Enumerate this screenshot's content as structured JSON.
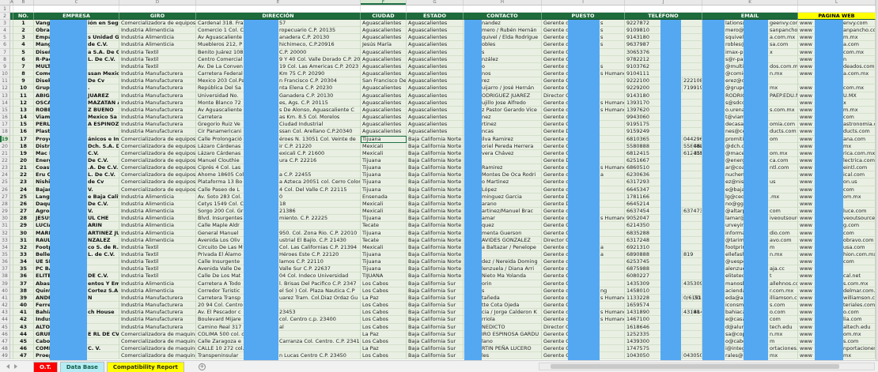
{
  "sheet": {
    "column_letters": [
      "A",
      "B",
      "C",
      "D",
      "E",
      "F",
      "G",
      "H",
      "I",
      "J",
      "K",
      "L"
    ],
    "headers": [
      "NO.",
      "EMPRESA",
      "GIRO",
      "DIRECCIÓN",
      "CIUDAD",
      "ESTADO",
      "CONTACTO",
      "PUESTO",
      "TELÉFONO",
      "EMAIL",
      "PAGINA WEB"
    ],
    "row_fields": [
      "no",
      "empresa_left",
      "empresa_right",
      "giro",
      "direccion_left",
      "direccion_right",
      "ciudad",
      "estado",
      "contacto",
      "puesto_left",
      "puesto_right",
      "tel1",
      "tel2",
      "tel3",
      "email_left",
      "email_right",
      "web_left",
      "web_right"
    ],
    "visible_row_numbers_start": 1,
    "visible_row_numbers_end": 49,
    "selection": {
      "sheet_row": 19,
      "column": "CIUDAD",
      "value": "Tijuana",
      "column_letter": "F"
    }
  },
  "rows": [
    [
      "1",
      "Vanguar",
      "ión en Seguridad E",
      "Comercializadora de equipos",
      "Cardenal 318. Fra",
      "57",
      "Aguascalientes",
      "Aguascalientes",
      "nandez",
      "Gerente de",
      "s",
      "9227872",
      "",
      "",
      "lations@",
      "geenvy.com",
      "www",
      "envy.com"
    ],
    [
      "2",
      "Obrador",
      "",
      "Industria Alimenticia",
      "Comercio 1 Col. C",
      "ropecuario C.P. 20135",
      "Aguascalientes",
      "Aguascalientes",
      "mero / Rubén Hernán",
      "Gerente de",
      "s",
      "9109810",
      "",
      "",
      "mero@o",
      "sanpancho.co",
      "www",
      "anpancho.com"
    ],
    [
      "3",
      "Empacad",
      "s Unidad Ganadera",
      "Industria Alimenticia",
      "Av Aguascaliente",
      "anadera C.P. 20130",
      "Aguascalientes",
      "Aguascalientes",
      "quivel / Elda Rodrígue",
      "Gerente de",
      "s",
      "9143180",
      "",
      "",
      "squivel@",
      "a.com.mx",
      "www",
      "m.mx"
    ],
    [
      "4",
      "Mangra",
      "de C.V.",
      "Industria Alimenticia",
      "Muebleros 212, P",
      "hichimeco, C.P.20916",
      "Jesús María",
      "Aguascalientes",
      "obles",
      "Gerente de",
      "s",
      "9637987",
      "",
      "",
      "robles@r",
      "sa.com",
      "www",
      "a.com"
    ],
    [
      "5",
      "Diseño Y",
      "a S.A. De C.V.",
      "Industria Textil",
      "Benito Juárez 108",
      "C.P. 20000",
      "Aguascalientes",
      "Aguascalientes",
      "s",
      "Gerente Co",
      "",
      "3065376",
      "",
      "",
      "imax-pro",
      "x",
      "www",
      "com.mx"
    ],
    [
      "6",
      "R-Pac M",
      "L. De C.V.",
      "Industria Textil",
      "Centro Comercial",
      "9 Y 40 Col. Valle Dorado C.P. 20",
      "Aguascalientes",
      "Aguascalientes",
      "nzález",
      "Gerente Co",
      "",
      "9782212",
      "",
      "",
      "s@r-pac.c",
      "",
      "www",
      "n"
    ],
    [
      "7",
      "MULTI B",
      "",
      "Industria Textil",
      "Av. De La Conven",
      "19 Col. Las Americas C.P. 2023",
      "Aguascalientes",
      "Aguascalientes",
      "o",
      "Gerente de",
      "s",
      "9103762",
      "",
      "",
      "@multibo",
      "dos.com.mx",
      "www",
      "deados.com.mx"
    ],
    [
      "8",
      "Comedor",
      "ssan Mexicana Ag",
      "Industria Manufacturera",
      "Carretera Federal",
      "Km 75 C.P. 20290",
      "Aguascalientes",
      "Aguascalientes",
      "nos",
      "Gerente de",
      "s Humanos",
      "9104111",
      "",
      "",
      "@comida",
      "n.mx",
      "www",
      "a.com.mx"
    ],
    [
      "9",
      "Diseko S",
      "De Cv",
      "Industria Manufacturera",
      "Mexico 203 Col.Pa",
      "n Francisco C.P. 20304",
      "San Francisco De Lo",
      "Aguascalientes",
      "rez",
      "Gerente Ge",
      "",
      "9222100",
      "222108",
      "",
      "erez@dk",
      "",
      "",
      ""
    ],
    [
      "10",
      "Grupo Ct",
      ".",
      "Industria Manufacturera",
      "República Del Sa",
      "nta Elena C.P. 20230",
      "Aguascalientes",
      "Aguascalientes",
      "uijarro / José Hernán",
      "Gerente Ge",
      "",
      "9229200",
      "719919",
      "",
      "@grupoct",
      "mx",
      "www",
      "com.mx"
    ],
    [
      "11",
      "ABIGAIL",
      "JUAREZ",
      "Industria Manufacturera",
      "Universidad No.",
      "Ganadera C.P. 20130",
      "Aguascalientes",
      "Aguascalientes",
      "ODRIGUEZ JUAREZ",
      "Director Ge",
      "",
      "9143180",
      "",
      "",
      "RODRIGU",
      "PAEP.EDU.MX",
      "www",
      "U.MX"
    ],
    [
      "12",
      "OSCAR A",
      "MAZATAN ACOSTA",
      "Industria Manufacturera",
      "Monte Blanco 72",
      "es, Ags. C.P. 20115",
      "Aguascalientes",
      "Aguascalientes",
      "ujillo Jose Alfredo",
      "Gerente de",
      "s Humanos",
      "1393170",
      "",
      "",
      "s@sdcom",
      "",
      "www",
      "x"
    ],
    [
      "13",
      "ROBERT",
      "Z BUENO",
      "Industria Manufacturera",
      "Av Aguascaliente",
      "s De Alonso, Aguascaliente C",
      "Aguascalientes",
      "Aguascalientes",
      "z Pastor Gerardo Vice",
      "Gerente de",
      "s Humanos",
      "1397620",
      "",
      "",
      "o.urena@",
      "s.com.mx",
      "www",
      "m.mx"
    ],
    [
      "14",
      "Viam Mé",
      "Mexico Sa De Cv",
      "Industria Manufacturera",
      "Carretera",
      "as Km. 8.5 Col. Morelos",
      "Aguascalientes",
      "Aguascalientes",
      "nez",
      "Gerente de",
      "",
      "9943060",
      "",
      "",
      "t@viamm",
      "",
      "www",
      "com"
    ],
    [
      "15",
      "PERLA JA",
      "A ESPINOZA",
      "Industria Manufacturera",
      "Gregorio Ruiz Ve",
      "Ciudad Industrial",
      "Aguascalientes",
      "Aguascalientes",
      "rtinez",
      "Gerente Ge",
      "",
      "9195175",
      "",
      "",
      "decasag",
      "omia.com",
      "www",
      "astronomia.com"
    ],
    [
      "16",
      "Plasticos",
      "",
      "Industria Manufacturera",
      "Cir Panamericani",
      "ssan Col. Arellano C.P.20340",
      "Aguascalientes",
      "Aguascalientes",
      "ncas",
      "Gerente De",
      "",
      "9159249",
      "",
      "",
      "nes@cel",
      "ducts.com",
      "www",
      "ducts.com"
    ],
    [
      "17",
      "Proyecto",
      "ánicos e Industrial",
      "Comercializadora de equipos",
      "Calle Prolongació",
      "éroes N. 13051 Col. Veinte de",
      "Tijuana",
      "Baja California Norte",
      "ilva Ramirez",
      "Gerente de",
      "",
      "6810365",
      "044296",
      "",
      "promitiju",
      "om",
      "www",
      "ana.com"
    ],
    [
      "18",
      "Distribui",
      "Dch. S.A. De C.V.",
      "Comercializadora de equipos",
      "Lázaro Cárdenas",
      "ir C.P. 21220",
      "Mexicali",
      "Baja California Norte",
      "oriel Pereda Herrera",
      "Gerente Ge",
      "",
      "5580888",
      "558088",
      "4624",
      "@dch.com",
      "",
      "www",
      "mx"
    ],
    [
      "19",
      "Mac Elé",
      "C.V.",
      "Comercializadora de equipos",
      "Lázaro Cárdenas",
      "exicali C.P. 21600",
      "Mexicali",
      "Baja California Norte",
      "vera Chávez",
      "Gerente Ge",
      "",
      "6812415",
      "612415",
      "3561",
      "@macele",
      "om.mx",
      "www",
      "rica.com.mx"
    ],
    [
      "20",
      "Energía",
      "De C.V.",
      "Comercializadora de equipos",
      "Manuel Clouthie",
      "ura C.P. 22216",
      "Tijuana",
      "Baja California Norte",
      "",
      "Gerente De",
      "",
      "6251667",
      "",
      "",
      "@energia",
      "ca.com",
      "www",
      "lectrica.com"
    ],
    [
      "21",
      "Coastline",
      ".A. De C.V.",
      "Comercializadora de equipos",
      "Ciprés 4 Col. Las",
      "",
      "Tijuana",
      "Baja California Norte",
      "Ramirez",
      "Gerente de",
      "s Humanos",
      "6860510",
      "",
      "",
      "ar@coas",
      "ntl.com",
      "www",
      "eintl.com"
    ],
    [
      "22",
      "Eru Chen",
      "L. De C.V.",
      "Comercializadora de equipos",
      "Ahome 18605 Col",
      "a C.P. 22455",
      "Tijuana",
      "Baja California Norte",
      "Montes De Oca Rodri",
      "Gerente de",
      "a",
      "6230636",
      "",
      "",
      "nuchemic",
      "",
      "www",
      "ical.com"
    ],
    [
      "23",
      "Nishiniho",
      "de Cv",
      "Comercializadora de equipos",
      "Plataforma 13 Bo",
      "a Azteca 20051 col. Cerro Color",
      "Tijuana",
      "Baja California Norte",
      "o Martinez",
      "Gerente de",
      "",
      "6317293",
      "",
      "",
      "ez@nishi",
      "us",
      "www",
      "on.us"
    ],
    [
      "24",
      "Bajamet",
      "V.",
      "Comercializadora de equipos",
      "Calle Paseo de L",
      "4 Col. Del Valle C.P. 22115",
      "Tijuana",
      "Baja California Norte",
      "López",
      "Gerente de",
      "",
      "6645347",
      "",
      "",
      "e@baja-r",
      "",
      "www",
      "com"
    ],
    [
      "25",
      "Langoste",
      "e Baja California",
      "Industria Alimenticia",
      "Av. Soto 283 Col.",
      "0",
      "Ensenada",
      "Baja California Norte",
      "minguez Garcia",
      "Gerente De",
      "",
      "1781166",
      "",
      "",
      "lg@cedm",
      ".mx",
      "www",
      "om.mx"
    ],
    [
      "26",
      "Daqu De",
      "De C.V.",
      "Industria Alimenticia",
      "Cetys 1549 Col. C",
      "18",
      "Mexicali",
      "Baja California Norte",
      "arano",
      "Gerente De",
      "",
      "6645214",
      "",
      "",
      "no@ggef",
      "",
      "www",
      ""
    ],
    [
      "27",
      "Agroalim",
      "V.",
      "Industria Alimenticia",
      "Sorgo 200 Col. Gr",
      "21386",
      "Mexicali",
      "Baja California Norte",
      "artinez/Manuel Brac",
      "Gerente de",
      "",
      "6637454",
      "637473",
      "",
      "@altarpr",
      "com",
      "www",
      "luce.com"
    ],
    [
      "28",
      "JESUS EN",
      "UL CHE",
      "Industria Alimenticia",
      "Blvd. Insurgentes",
      "miento. C.P. 22225",
      "Tijuana",
      "Baja California Norte",
      "amar",
      "Gerente de",
      "s Humanos",
      "9052047",
      "",
      "",
      "lamar@p",
      "iveoutsource.c",
      "www",
      "veoutsource.com"
    ],
    [
      "29",
      "LUCIA YF",
      "ARIN",
      "Industria Alimenticia",
      "Calle Maple Aldr",
      "",
      "Tecate",
      "Baja California Norte",
      "quez",
      "Gerente Ge",
      "",
      "6214350",
      "",
      "",
      "urveying",
      "",
      "www",
      "g.com"
    ],
    [
      "30",
      "MARIA D",
      "ARTINEZ JUAREZ",
      "Industria Alimenticia",
      "General Manuel",
      "950. Col. Zona Rio. C.P. 22010",
      "Tijuana",
      "Baja California Norte",
      "menta Guerson",
      "Gerente Ge",
      "",
      "6835288",
      "",
      "",
      "informa",
      "dio.com",
      "www",
      "com"
    ],
    [
      "31",
      "RAUL BE",
      "NZALEZ",
      "Industria Alimenticia",
      "Avenida Los Oliv",
      "ustrial El Bajío. C.P. 21430",
      "Tecate",
      "Baja California Norte",
      "AVIDES GONZALEZ",
      "Director Ge",
      "",
      "6317248",
      "",
      "",
      "@tarima",
      "avo.com",
      "www",
      "obravo.com"
    ],
    [
      "32",
      "Footprin",
      "co S. de R.L. de C.V",
      "Industria Textil",
      "Circuito De Las M",
      "Col. Las Californias C.P. 21394",
      "Mexicali",
      "Baja California Norte",
      "a Baltazar / Penelope",
      "Gerente de",
      "a",
      "6921310",
      "",
      "",
      "footprint",
      "m",
      "www",
      "usa.com"
    ],
    [
      "33",
      "Belle Fas",
      "L. de C.V.",
      "Industria Textil",
      "Privada El Álamo",
      "Héroes Este C.P. 22120",
      "Tijuana",
      "Baja California Norte",
      "",
      "Gerente de",
      "a",
      "6890888",
      "819",
      "",
      "ellefash",
      "n.mx",
      "www",
      "hion.com.mx"
    ],
    [
      "34",
      "UE SPOR",
      "",
      "Industria Textil",
      "Calle Insurgente",
      "lamos C.P. 22110",
      "Tijuana",
      "Baja California Norte",
      "dez / Nereida Doming",
      "Gerente de",
      "",
      "6253745",
      "",
      "",
      "@uespor",
      "",
      "www",
      "com"
    ],
    [
      "35",
      "PC BAJA",
      "",
      "Industria Textil",
      "Avenida Valle De",
      "Valle Sur C.P. 22637",
      "Tijuana",
      "Baja California Norte",
      "lenzuela / Diana Arri",
      "Gerente de",
      "",
      "6875988",
      "",
      "",
      "alenzuel",
      "aja.cc",
      "www",
      ""
    ],
    [
      "36",
      "ELITE BY",
      "DE C.V.",
      "Industria Textil",
      "Calle De Los Mat",
      "04 Col. Indeco Universidad",
      "TIJUANA",
      "Baja California Norte",
      "Nieto Ma Yolanda",
      "Gerente Ge",
      "",
      "6080227",
      "",
      "",
      "elitetec",
      "t",
      "www",
      "cal.net"
    ],
    [
      "37",
      "Abastece",
      "entos Y Embutidos",
      "Industria Alimenticia",
      "Carretera A Todo",
      "l. Brisas Del Pacifico C.P. 2347",
      "Los Cabos",
      "Baja California Sur",
      "orin",
      "Gerente Ge",
      "",
      "1435309",
      "435309",
      "",
      "manosbr",
      "allehnos.com",
      "www",
      "s.com.mx"
    ],
    [
      "38",
      "Quintas",
      "Cortez S.A. De C.V.",
      "Industria Alimenticia",
      "Corredor Turistic",
      "el Sol ) Col. Plaza Nautica C.P",
      "Los Cabos",
      "Baja California Sur",
      "s",
      "Gerente de",
      "ng",
      "1458010",
      "",
      "",
      "acienda",
      "r.com.mx",
      "www",
      "delmar.com.mx"
    ],
    [
      "39",
      "ANDREW",
      "N",
      "Industria Manufacturera",
      "Carretera Transp",
      "uarez Tram. Col.Diaz Ordaz Gu",
      "La Paz",
      "Baja California Sur",
      "tañeda",
      "Gerente de",
      "s Humanos",
      "1133228",
      "0/6151",
      "30",
      "eda@and",
      "illiamson.com",
      "www",
      "williamson.com"
    ],
    [
      "40",
      "Ferreteri",
      "",
      "Industria Manufacturera",
      "20 94 Col. Centro",
      "",
      "Los Cabos",
      "Baja California Sur",
      "tte Cota Ojeda",
      "Gerente Ge",
      "",
      "1659574",
      "",
      "",
      "iconsmat",
      "s.com",
      "www",
      "teriales.com"
    ],
    [
      "41",
      "Bahía In",
      "ch House",
      "Industria Manufacturera",
      "Av. El Pescador c",
      "23453",
      "Los Cabos",
      "Baja California Sur",
      "cia / Jorge Calderon K",
      "Gerente de",
      "s Humanos",
      "1431890",
      "43188",
      "4143",
      "bahiacab",
      "o.com",
      "www",
      "o.com"
    ],
    [
      "42",
      "Industria",
      "",
      "Industria Manufacturera",
      "Boulevard Mijare",
      "col. Centro c.p. 23400",
      "Los Cabos",
      "Baja California Sur",
      "rriola",
      "Gerente de",
      "s Humanos",
      "1467100",
      "",
      "",
      "e@casan",
      "com",
      "www",
      "lia.com"
    ],
    [
      "43",
      "ALTO DY",
      "",
      "Industria Manufacturera",
      "Camino Real 317",
      "al",
      "Los Cabos",
      "Baja California Sur",
      "NEDICTO",
      "Director Ge",
      "",
      "1618646",
      "",
      "",
      "d@alumn",
      "tech.edu",
      "www",
      "altech.edu"
    ],
    [
      "44",
      "GRUPO (",
      "E RL DE CV",
      "Comercializadora de maquina",
      "COLIMA 500 col. c",
      "",
      "La Paz",
      "Baja California Sur",
      "IRO ESPINOSA GARDU",
      "Gerente Ge",
      "",
      "1252335",
      "",
      "",
      "sa@copy",
      "n.mx",
      "www",
      "om.mx"
    ],
    [
      "45",
      "Cabo Cus",
      "",
      "Comercializadora de maquina",
      "Calle Zaragoza e",
      "Carranza Col. Centro. C.P. 2341",
      "Los Cabos",
      "Baja California Sur",
      "lano",
      "Gerente Ge",
      "",
      "1439300",
      "",
      "",
      "o@caboc",
      "m",
      "www",
      "s.com"
    ],
    [
      "46",
      "COMDEC",
      "C. V.",
      "Comercializadora de maquina",
      "CALLE 10 272 col.",
      "",
      "La Paz",
      "Baja California Sur",
      "RTIN PEÑA LUCERO",
      "Gerente Ge",
      "",
      "1747575",
      "",
      "",
      "i@integr",
      "ortaciones.com",
      "www",
      "nportaciones.co"
    ],
    [
      "47",
      "Proepta,",
      "",
      "Comercializadora de maquina",
      "Transpeninsular",
      "n Lucas Centro C.P. 23450",
      "Los Cabos",
      "Baja California Sur",
      "les",
      "Gerente Ge",
      "",
      "1043050",
      "043050",
      "",
      "rales@p",
      "mx",
      "www",
      "mx"
    ]
  ],
  "tabs": {
    "items": [
      {
        "label": "O.T.",
        "color": "#ff0000",
        "active": false
      },
      {
        "label": "Data Base",
        "color": "#b5ecf4",
        "active": true
      },
      {
        "label": "Compatibility Report",
        "color": "#ffff00",
        "active": false
      }
    ]
  },
  "colors": {
    "header_bg": "#1e6b3c",
    "header_last_bg": "#ffff00",
    "row_bg": "#e9f0e3",
    "gridline": "#c9d8c0",
    "redaction": "#54a8f2",
    "selection": "#1e7145",
    "tab_ot": "#ff0000",
    "tab_active": "#b5ecf4",
    "tab_report": "#ffff00"
  }
}
